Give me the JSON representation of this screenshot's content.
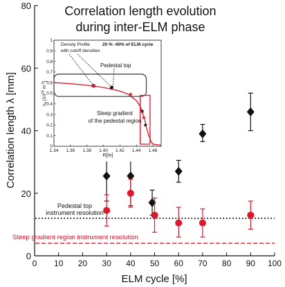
{
  "colors": {
    "black_series": "#111111",
    "red_series": "#e0162b",
    "pedestal_line": "#111111",
    "steep_line": "#e0162b",
    "inset_profile": "#e0162b",
    "inset_box_pedestal": "#444444",
    "inset_box_steep": "#e0162b"
  },
  "chart_data": [
    {
      "type": "scatter",
      "title": "Correlation length evolution during inter-ELM phase",
      "title_lines": [
        "Correlation length evolution",
        "during inter-ELM phase"
      ],
      "xlabel": "ELM cycle [%]",
      "ylabel": "Correlation length λ   [mm]",
      "xlim": [
        0,
        100
      ],
      "ylim": [
        0,
        80
      ],
      "x_ticks": [
        0,
        10,
        20,
        30,
        40,
        50,
        60,
        70,
        80,
        90,
        100
      ],
      "y_ticks": [
        0,
        20,
        40,
        60,
        80
      ],
      "x_tick_labels": [
        "0",
        "10",
        "20",
        "30",
        "40",
        "50",
        "60",
        "70",
        "80",
        "90",
        "100"
      ],
      "y_tick_labels": [
        "0",
        "20",
        "40",
        "60",
        "80"
      ],
      "grid": false,
      "series": [
        {
          "marker": "diamond",
          "color": "#111111",
          "points": [
            {
              "x": 30,
              "y": 25.5,
              "yerr_low": 17.5,
              "yerr_high": 33.5
            },
            {
              "x": 40,
              "y": 25.5,
              "yerr_low": 16.0,
              "yerr_high": 35.0
            },
            {
              "x": 49,
              "y": 17.0,
              "yerr_low": 13.0,
              "yerr_high": 21.0
            },
            {
              "x": 60,
              "y": 27.0,
              "yerr_low": 23.5,
              "yerr_high": 30.5
            },
            {
              "x": 70,
              "y": 39.0,
              "yerr_low": 36.5,
              "yerr_high": 42.0
            },
            {
              "x": 90,
              "y": 46.0,
              "yerr_low": 40.0,
              "yerr_high": 52.0
            }
          ]
        },
        {
          "marker": "circle",
          "color": "#e0162b",
          "points": [
            {
              "x": 30,
              "y": 14.5,
              "yerr_low": 9.5,
              "yerr_high": 19.5
            },
            {
              "x": 40,
              "y": 20.0,
              "yerr_low": 15.5,
              "yerr_high": 24.5
            },
            {
              "x": 50,
              "y": 13.0,
              "yerr_low": 7.5,
              "yerr_high": 18.5
            },
            {
              "x": 60,
              "y": 10.5,
              "yerr_low": 6.0,
              "yerr_high": 15.5
            },
            {
              "x": 70,
              "y": 10.5,
              "yerr_low": 6.0,
              "yerr_high": 15.0
            },
            {
              "x": 90,
              "y": 13.0,
              "yerr_low": 8.5,
              "yerr_high": 17.5
            }
          ]
        }
      ],
      "reference_lines": [
        {
          "y": 12,
          "style": "dotted",
          "color": "#111111",
          "label_lines": [
            "Pedestal top",
            "instrument resolution"
          ]
        },
        {
          "y": 4,
          "style": "dashed",
          "color": "#e0162b",
          "label_lines": [
            "Steep gradient region instrument resolution"
          ]
        }
      ]
    },
    {
      "type": "line",
      "inset": true,
      "xlabel": "R[m]",
      "ylabel": "n_e [10^19 m^-3]",
      "xlim": [
        1.34,
        1.47
      ],
      "ylim": [
        0,
        1
      ],
      "x_ticks": [
        1.34,
        1.36,
        1.38,
        1.4,
        1.42,
        1.44,
        1.46
      ],
      "y_ticks": [
        0,
        0.1,
        0.2,
        0.3,
        0.4,
        0.5,
        0.6,
        0.7,
        0.8,
        0.9,
        1
      ],
      "x_tick_labels": [
        "1.34",
        "1.36",
        "1.38",
        "1.40",
        "1.42",
        "1.44",
        "1.46"
      ],
      "y_tick_labels": [
        "0",
        "0.1",
        "0.2",
        "0.3",
        "0.4",
        "0.5",
        "0.6",
        "0.7",
        "0.8",
        "0.9",
        "1"
      ],
      "ylabel_parts": {
        "main": "n",
        "sub1": "e",
        "mid": " [10",
        "sup": "19",
        "tail": " m",
        "sup2": "-3",
        "end": "]"
      },
      "profile": {
        "x": [
          1.34,
          1.36,
          1.38,
          1.4,
          1.42,
          1.43,
          1.44,
          1.445,
          1.45,
          1.452,
          1.455,
          1.458,
          1.46,
          1.47
        ],
        "y": [
          0.6,
          0.59,
          0.575,
          0.555,
          0.52,
          0.49,
          0.43,
          0.37,
          0.25,
          0.18,
          0.1,
          0.04,
          0.02,
          0.01
        ]
      },
      "markers": [
        {
          "x": 1.388,
          "y": 0.57,
          "color": "#e0162b",
          "shape": "square"
        },
        {
          "x": 1.41,
          "y": 0.555,
          "color": "#111111",
          "shape": "circle"
        },
        {
          "x": 1.433,
          "y": 0.49,
          "color": "#e0162b",
          "shape": "star"
        },
        {
          "x": 1.447,
          "y": 0.33,
          "color": "#111111",
          "shape": "star"
        },
        {
          "x": 1.449,
          "y": 0.27,
          "color": "#e0162b",
          "shape": "star"
        },
        {
          "x": 1.451,
          "y": 0.2,
          "color": "#111111",
          "shape": "star"
        }
      ],
      "annotations": {
        "density_profile": "Density Profile",
        "cycle_window": "20 % -40% of ELM cycle",
        "cutoff": "with cutoff densities",
        "pedestal_top": "Pedestal top",
        "steep_gradient_line1": "Steep gradient",
        "steep_gradient_line2": "of the pedestal region"
      }
    }
  ]
}
